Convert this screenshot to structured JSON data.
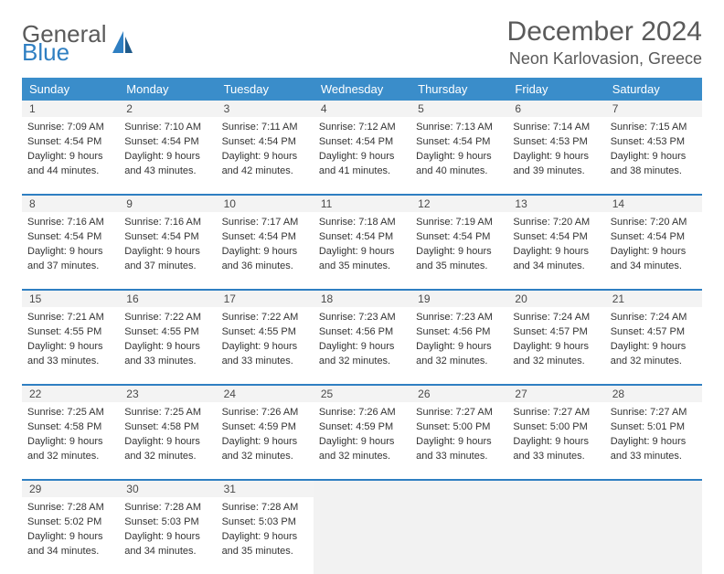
{
  "brand": {
    "word1": "General",
    "word2": "Blue"
  },
  "title": "December 2024",
  "location": "Neon Karlovasion, Greece",
  "header_bg": "#3a8dca",
  "divider_color": "#2f7fc2",
  "daynum_bg": "#f3f3f3",
  "empty_bg": "#f2f2f2",
  "text_color": "#333333",
  "dayNames": [
    "Sunday",
    "Monday",
    "Tuesday",
    "Wednesday",
    "Thursday",
    "Friday",
    "Saturday"
  ],
  "weeks": [
    [
      {
        "n": "1",
        "sr": "Sunrise: 7:09 AM",
        "ss": "Sunset: 4:54 PM",
        "d1": "Daylight: 9 hours",
        "d2": "and 44 minutes."
      },
      {
        "n": "2",
        "sr": "Sunrise: 7:10 AM",
        "ss": "Sunset: 4:54 PM",
        "d1": "Daylight: 9 hours",
        "d2": "and 43 minutes."
      },
      {
        "n": "3",
        "sr": "Sunrise: 7:11 AM",
        "ss": "Sunset: 4:54 PM",
        "d1": "Daylight: 9 hours",
        "d2": "and 42 minutes."
      },
      {
        "n": "4",
        "sr": "Sunrise: 7:12 AM",
        "ss": "Sunset: 4:54 PM",
        "d1": "Daylight: 9 hours",
        "d2": "and 41 minutes."
      },
      {
        "n": "5",
        "sr": "Sunrise: 7:13 AM",
        "ss": "Sunset: 4:54 PM",
        "d1": "Daylight: 9 hours",
        "d2": "and 40 minutes."
      },
      {
        "n": "6",
        "sr": "Sunrise: 7:14 AM",
        "ss": "Sunset: 4:53 PM",
        "d1": "Daylight: 9 hours",
        "d2": "and 39 minutes."
      },
      {
        "n": "7",
        "sr": "Sunrise: 7:15 AM",
        "ss": "Sunset: 4:53 PM",
        "d1": "Daylight: 9 hours",
        "d2": "and 38 minutes."
      }
    ],
    [
      {
        "n": "8",
        "sr": "Sunrise: 7:16 AM",
        "ss": "Sunset: 4:54 PM",
        "d1": "Daylight: 9 hours",
        "d2": "and 37 minutes."
      },
      {
        "n": "9",
        "sr": "Sunrise: 7:16 AM",
        "ss": "Sunset: 4:54 PM",
        "d1": "Daylight: 9 hours",
        "d2": "and 37 minutes."
      },
      {
        "n": "10",
        "sr": "Sunrise: 7:17 AM",
        "ss": "Sunset: 4:54 PM",
        "d1": "Daylight: 9 hours",
        "d2": "and 36 minutes."
      },
      {
        "n": "11",
        "sr": "Sunrise: 7:18 AM",
        "ss": "Sunset: 4:54 PM",
        "d1": "Daylight: 9 hours",
        "d2": "and 35 minutes."
      },
      {
        "n": "12",
        "sr": "Sunrise: 7:19 AM",
        "ss": "Sunset: 4:54 PM",
        "d1": "Daylight: 9 hours",
        "d2": "and 35 minutes."
      },
      {
        "n": "13",
        "sr": "Sunrise: 7:20 AM",
        "ss": "Sunset: 4:54 PM",
        "d1": "Daylight: 9 hours",
        "d2": "and 34 minutes."
      },
      {
        "n": "14",
        "sr": "Sunrise: 7:20 AM",
        "ss": "Sunset: 4:54 PM",
        "d1": "Daylight: 9 hours",
        "d2": "and 34 minutes."
      }
    ],
    [
      {
        "n": "15",
        "sr": "Sunrise: 7:21 AM",
        "ss": "Sunset: 4:55 PM",
        "d1": "Daylight: 9 hours",
        "d2": "and 33 minutes."
      },
      {
        "n": "16",
        "sr": "Sunrise: 7:22 AM",
        "ss": "Sunset: 4:55 PM",
        "d1": "Daylight: 9 hours",
        "d2": "and 33 minutes."
      },
      {
        "n": "17",
        "sr": "Sunrise: 7:22 AM",
        "ss": "Sunset: 4:55 PM",
        "d1": "Daylight: 9 hours",
        "d2": "and 33 minutes."
      },
      {
        "n": "18",
        "sr": "Sunrise: 7:23 AM",
        "ss": "Sunset: 4:56 PM",
        "d1": "Daylight: 9 hours",
        "d2": "and 32 minutes."
      },
      {
        "n": "19",
        "sr": "Sunrise: 7:23 AM",
        "ss": "Sunset: 4:56 PM",
        "d1": "Daylight: 9 hours",
        "d2": "and 32 minutes."
      },
      {
        "n": "20",
        "sr": "Sunrise: 7:24 AM",
        "ss": "Sunset: 4:57 PM",
        "d1": "Daylight: 9 hours",
        "d2": "and 32 minutes."
      },
      {
        "n": "21",
        "sr": "Sunrise: 7:24 AM",
        "ss": "Sunset: 4:57 PM",
        "d1": "Daylight: 9 hours",
        "d2": "and 32 minutes."
      }
    ],
    [
      {
        "n": "22",
        "sr": "Sunrise: 7:25 AM",
        "ss": "Sunset: 4:58 PM",
        "d1": "Daylight: 9 hours",
        "d2": "and 32 minutes."
      },
      {
        "n": "23",
        "sr": "Sunrise: 7:25 AM",
        "ss": "Sunset: 4:58 PM",
        "d1": "Daylight: 9 hours",
        "d2": "and 32 minutes."
      },
      {
        "n": "24",
        "sr": "Sunrise: 7:26 AM",
        "ss": "Sunset: 4:59 PM",
        "d1": "Daylight: 9 hours",
        "d2": "and 32 minutes."
      },
      {
        "n": "25",
        "sr": "Sunrise: 7:26 AM",
        "ss": "Sunset: 4:59 PM",
        "d1": "Daylight: 9 hours",
        "d2": "and 32 minutes."
      },
      {
        "n": "26",
        "sr": "Sunrise: 7:27 AM",
        "ss": "Sunset: 5:00 PM",
        "d1": "Daylight: 9 hours",
        "d2": "and 33 minutes."
      },
      {
        "n": "27",
        "sr": "Sunrise: 7:27 AM",
        "ss": "Sunset: 5:00 PM",
        "d1": "Daylight: 9 hours",
        "d2": "and 33 minutes."
      },
      {
        "n": "28",
        "sr": "Sunrise: 7:27 AM",
        "ss": "Sunset: 5:01 PM",
        "d1": "Daylight: 9 hours",
        "d2": "and 33 minutes."
      }
    ],
    [
      {
        "n": "29",
        "sr": "Sunrise: 7:28 AM",
        "ss": "Sunset: 5:02 PM",
        "d1": "Daylight: 9 hours",
        "d2": "and 34 minutes."
      },
      {
        "n": "30",
        "sr": "Sunrise: 7:28 AM",
        "ss": "Sunset: 5:03 PM",
        "d1": "Daylight: 9 hours",
        "d2": "and 34 minutes."
      },
      {
        "n": "31",
        "sr": "Sunrise: 7:28 AM",
        "ss": "Sunset: 5:03 PM",
        "d1": "Daylight: 9 hours",
        "d2": "and 35 minutes."
      },
      null,
      null,
      null,
      null
    ]
  ]
}
